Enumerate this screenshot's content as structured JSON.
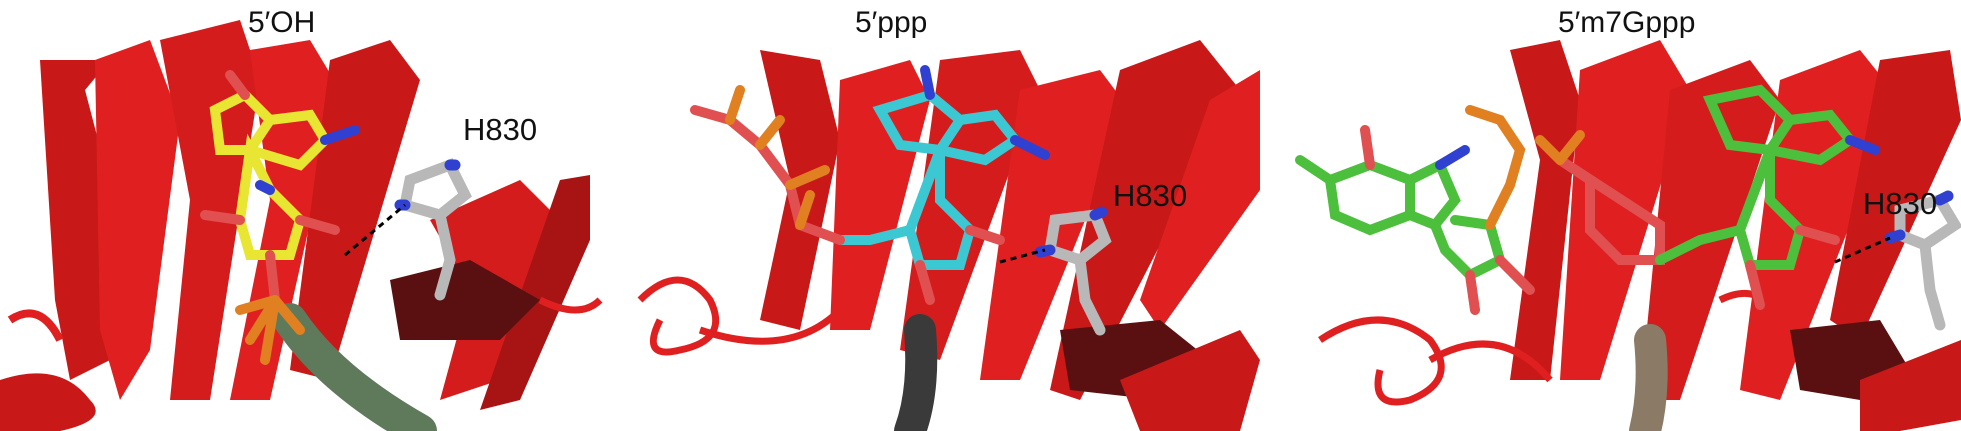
{
  "figure": {
    "panels": [
      {
        "title": "5′OH",
        "residue_label": "H830",
        "ligand_carbon_color": "#e8e632",
        "rna_tube_color": "#5e7a5a"
      },
      {
        "title": "5′ppp",
        "residue_label": "H830",
        "ligand_carbon_color": "#3cc8d2",
        "rna_tube_color": "#3a3a3a"
      },
      {
        "title": "5′m7Gppp",
        "residue_label": "H830",
        "ligand_carbon_color": "#4cbf3c",
        "rna_tube_color": "#8b7a66"
      }
    ],
    "colors": {
      "protein_ribbon": "#e02020",
      "protein_ribbon_dark": "#5a1010",
      "histidine_carbon": "#b8b8b8",
      "nitrogen": "#3040d0",
      "oxygen": "#e05050",
      "phosphorus": "#e08020",
      "hbond": "#000000"
    }
  }
}
